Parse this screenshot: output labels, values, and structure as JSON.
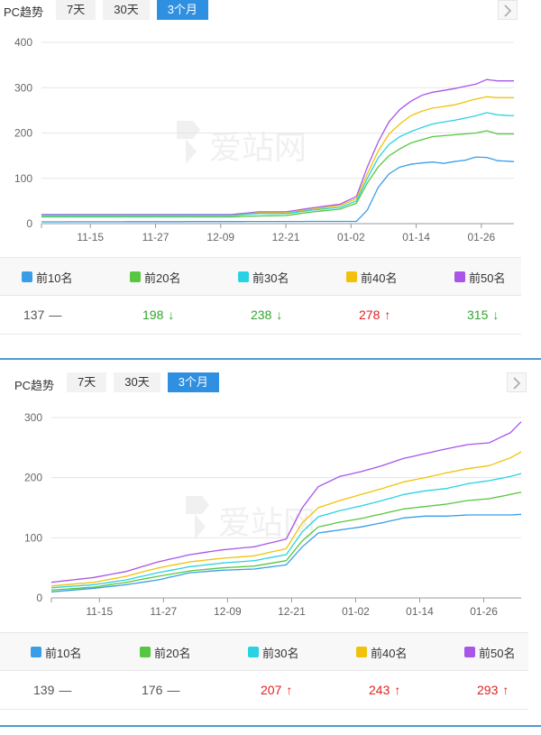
{
  "panels": [
    {
      "title": "PC趋势",
      "tabs": [
        {
          "label": "7天",
          "active": false
        },
        {
          "label": "30天",
          "active": false
        },
        {
          "label": "3个月",
          "active": true
        }
      ],
      "legend": [
        "前10名",
        "前20名",
        "前30名",
        "前40名",
        "前50名"
      ],
      "values": [
        {
          "value": "137",
          "trend": "flat",
          "symbol": "—"
        },
        {
          "value": "198",
          "trend": "down",
          "symbol": "↓"
        },
        {
          "value": "238",
          "trend": "down",
          "symbol": "↓"
        },
        {
          "value": "278",
          "trend": "up",
          "symbol": "↑"
        },
        {
          "value": "315",
          "trend": "down",
          "symbol": "↓"
        }
      ]
    },
    {
      "title": "PC趋势",
      "tabs": [
        {
          "label": "7天",
          "active": false
        },
        {
          "label": "30天",
          "active": false
        },
        {
          "label": "3个月",
          "active": true
        }
      ],
      "legend": [
        "前10名",
        "前20名",
        "前30名",
        "前40名",
        "前50名"
      ],
      "values": [
        {
          "value": "139",
          "trend": "flat",
          "symbol": "—"
        },
        {
          "value": "176",
          "trend": "flat",
          "symbol": "—"
        },
        {
          "value": "207",
          "trend": "up",
          "symbol": "↑"
        },
        {
          "value": "243",
          "trend": "up",
          "symbol": "↑"
        },
        {
          "value": "293",
          "trend": "up",
          "symbol": "↑"
        }
      ]
    }
  ],
  "watermark_text": "爱站网",
  "colors": {
    "top10": "#3a9ee6",
    "top20": "#57c640",
    "top30": "#29d2e2",
    "top40": "#f2c20a",
    "top50": "#a855e8",
    "up": "#e02020",
    "down": "#2fa52f",
    "accent": "#2f8fe0"
  },
  "chart_data": [
    {
      "type": "line",
      "title": "",
      "xlabel": "",
      "ylabel": "",
      "ylim": [
        0,
        400
      ],
      "yticks": [
        0,
        100,
        200,
        300,
        400
      ],
      "x_ticks": [
        "11-15",
        "11-27",
        "12-09",
        "12-21",
        "01-02",
        "01-14",
        "01-26"
      ],
      "x_tick_index": [
        9,
        21,
        33,
        45,
        57,
        69,
        81
      ],
      "x_count": 88,
      "grid": true,
      "series": [
        {
          "name": "前10名",
          "color": "#3a9ee6",
          "keys": [
            [
              0,
              4
            ],
            [
              55,
              5
            ],
            [
              58,
              5
            ],
            [
              60,
              30
            ],
            [
              62,
              80
            ],
            [
              64,
              110
            ],
            [
              66,
              125
            ],
            [
              68,
              131
            ],
            [
              70,
              134
            ],
            [
              72,
              136
            ],
            [
              74,
              133
            ],
            [
              76,
              137
            ],
            [
              78,
              140
            ],
            [
              80,
              147
            ],
            [
              82,
              146
            ],
            [
              84,
              139
            ],
            [
              87,
              137
            ]
          ]
        },
        {
          "name": "前20名",
          "color": "#57c640",
          "keys": [
            [
              0,
              15
            ],
            [
              35,
              15
            ],
            [
              40,
              17
            ],
            [
              45,
              18
            ],
            [
              50,
              26
            ],
            [
              55,
              32
            ],
            [
              58,
              45
            ],
            [
              60,
              90
            ],
            [
              62,
              125
            ],
            [
              64,
              150
            ],
            [
              66,
              165
            ],
            [
              68,
              178
            ],
            [
              70,
              185
            ],
            [
              72,
              192
            ],
            [
              76,
              196
            ],
            [
              80,
              200
            ],
            [
              82,
              205
            ],
            [
              84,
              198
            ],
            [
              87,
              198
            ]
          ]
        },
        {
          "name": "前30名",
          "color": "#29d2e2",
          "keys": [
            [
              0,
              18
            ],
            [
              35,
              18
            ],
            [
              40,
              22
            ],
            [
              45,
              22
            ],
            [
              50,
              30
            ],
            [
              55,
              36
            ],
            [
              58,
              50
            ],
            [
              60,
              100
            ],
            [
              62,
              145
            ],
            [
              64,
              175
            ],
            [
              66,
              192
            ],
            [
              68,
              203
            ],
            [
              70,
              212
            ],
            [
              72,
              220
            ],
            [
              76,
              228
            ],
            [
              80,
              238
            ],
            [
              82,
              245
            ],
            [
              84,
              240
            ],
            [
              87,
              238
            ]
          ]
        },
        {
          "name": "前40名",
          "color": "#f2c20a",
          "keys": [
            [
              0,
              18
            ],
            [
              35,
              18
            ],
            [
              40,
              24
            ],
            [
              45,
              24
            ],
            [
              50,
              32
            ],
            [
              55,
              40
            ],
            [
              58,
              55
            ],
            [
              60,
              110
            ],
            [
              62,
              160
            ],
            [
              64,
              198
            ],
            [
              66,
              220
            ],
            [
              68,
              238
            ],
            [
              70,
              248
            ],
            [
              72,
              255
            ],
            [
              76,
              262
            ],
            [
              80,
              275
            ],
            [
              82,
              280
            ],
            [
              84,
              278
            ],
            [
              87,
              278
            ]
          ]
        },
        {
          "name": "前50名",
          "color": "#a855e8",
          "keys": [
            [
              0,
              20
            ],
            [
              35,
              20
            ],
            [
              40,
              26
            ],
            [
              45,
              26
            ],
            [
              50,
              35
            ],
            [
              55,
              43
            ],
            [
              58,
              60
            ],
            [
              60,
              125
            ],
            [
              62,
              180
            ],
            [
              64,
              225
            ],
            [
              66,
              252
            ],
            [
              68,
              270
            ],
            [
              70,
              283
            ],
            [
              72,
              290
            ],
            [
              76,
              298
            ],
            [
              80,
              308
            ],
            [
              82,
              318
            ],
            [
              84,
              315
            ],
            [
              87,
              315
            ]
          ]
        }
      ]
    },
    {
      "type": "line",
      "title": "",
      "xlabel": "",
      "ylabel": "",
      "ylim": [
        0,
        300
      ],
      "yticks": [
        0,
        100,
        200,
        300
      ],
      "x_ticks": [
        "11-15",
        "11-27",
        "12-09",
        "12-21",
        "01-02",
        "01-14",
        "01-26"
      ],
      "x_tick_index": [
        9,
        21,
        33,
        45,
        57,
        69,
        81
      ],
      "x_count": 89,
      "grid": true,
      "series": [
        {
          "name": "前10名",
          "color": "#3a9ee6",
          "keys": [
            [
              0,
              10
            ],
            [
              8,
              16
            ],
            [
              14,
              22
            ],
            [
              20,
              30
            ],
            [
              26,
              42
            ],
            [
              32,
              46
            ],
            [
              38,
              48
            ],
            [
              44,
              55
            ],
            [
              47,
              85
            ],
            [
              50,
              108
            ],
            [
              54,
              113
            ],
            [
              58,
              118
            ],
            [
              62,
              125
            ],
            [
              66,
              133
            ],
            [
              70,
              136
            ],
            [
              74,
              136
            ],
            [
              78,
              138
            ],
            [
              82,
              138
            ],
            [
              86,
              138
            ],
            [
              88,
              139
            ]
          ]
        },
        {
          "name": "前20名",
          "color": "#57c640",
          "keys": [
            [
              0,
              13
            ],
            [
              8,
              18
            ],
            [
              14,
              26
            ],
            [
              20,
              36
            ],
            [
              26,
              45
            ],
            [
              32,
              50
            ],
            [
              38,
              53
            ],
            [
              44,
              62
            ],
            [
              47,
              95
            ],
            [
              50,
              118
            ],
            [
              54,
              126
            ],
            [
              58,
              132
            ],
            [
              62,
              140
            ],
            [
              66,
              148
            ],
            [
              70,
              152
            ],
            [
              74,
              156
            ],
            [
              78,
              162
            ],
            [
              82,
              165
            ],
            [
              86,
              172
            ],
            [
              88,
              176
            ]
          ]
        },
        {
          "name": "前30名",
          "color": "#29d2e2",
          "keys": [
            [
              0,
              17
            ],
            [
              8,
              22
            ],
            [
              14,
              30
            ],
            [
              20,
              42
            ],
            [
              26,
              52
            ],
            [
              32,
              58
            ],
            [
              38,
              62
            ],
            [
              44,
              72
            ],
            [
              47,
              110
            ],
            [
              50,
              135
            ],
            [
              54,
              145
            ],
            [
              58,
              153
            ],
            [
              62,
              162
            ],
            [
              66,
              172
            ],
            [
              70,
              178
            ],
            [
              74,
              182
            ],
            [
              78,
              190
            ],
            [
              82,
              195
            ],
            [
              86,
              202
            ],
            [
              88,
              207
            ]
          ]
        },
        {
          "name": "前40名",
          "color": "#f2c20a",
          "keys": [
            [
              0,
              20
            ],
            [
              8,
              26
            ],
            [
              14,
              36
            ],
            [
              20,
              50
            ],
            [
              26,
              60
            ],
            [
              32,
              66
            ],
            [
              38,
              70
            ],
            [
              44,
              82
            ],
            [
              47,
              125
            ],
            [
              50,
              150
            ],
            [
              54,
              162
            ],
            [
              58,
              172
            ],
            [
              62,
              182
            ],
            [
              66,
              193
            ],
            [
              70,
              200
            ],
            [
              74,
              208
            ],
            [
              78,
              215
            ],
            [
              82,
              220
            ],
            [
              86,
              233
            ],
            [
              88,
              243
            ]
          ]
        },
        {
          "name": "前50名",
          "color": "#a855e8",
          "keys": [
            [
              0,
              26
            ],
            [
              8,
              34
            ],
            [
              14,
              44
            ],
            [
              20,
              60
            ],
            [
              26,
              72
            ],
            [
              32,
              80
            ],
            [
              38,
              85
            ],
            [
              44,
              98
            ],
            [
              47,
              150
            ],
            [
              50,
              185
            ],
            [
              54,
              202
            ],
            [
              58,
              210
            ],
            [
              62,
              220
            ],
            [
              66,
              232
            ],
            [
              70,
              240
            ],
            [
              74,
              248
            ],
            [
              78,
              255
            ],
            [
              82,
              258
            ],
            [
              86,
              275
            ],
            [
              88,
              293
            ]
          ]
        }
      ]
    }
  ]
}
